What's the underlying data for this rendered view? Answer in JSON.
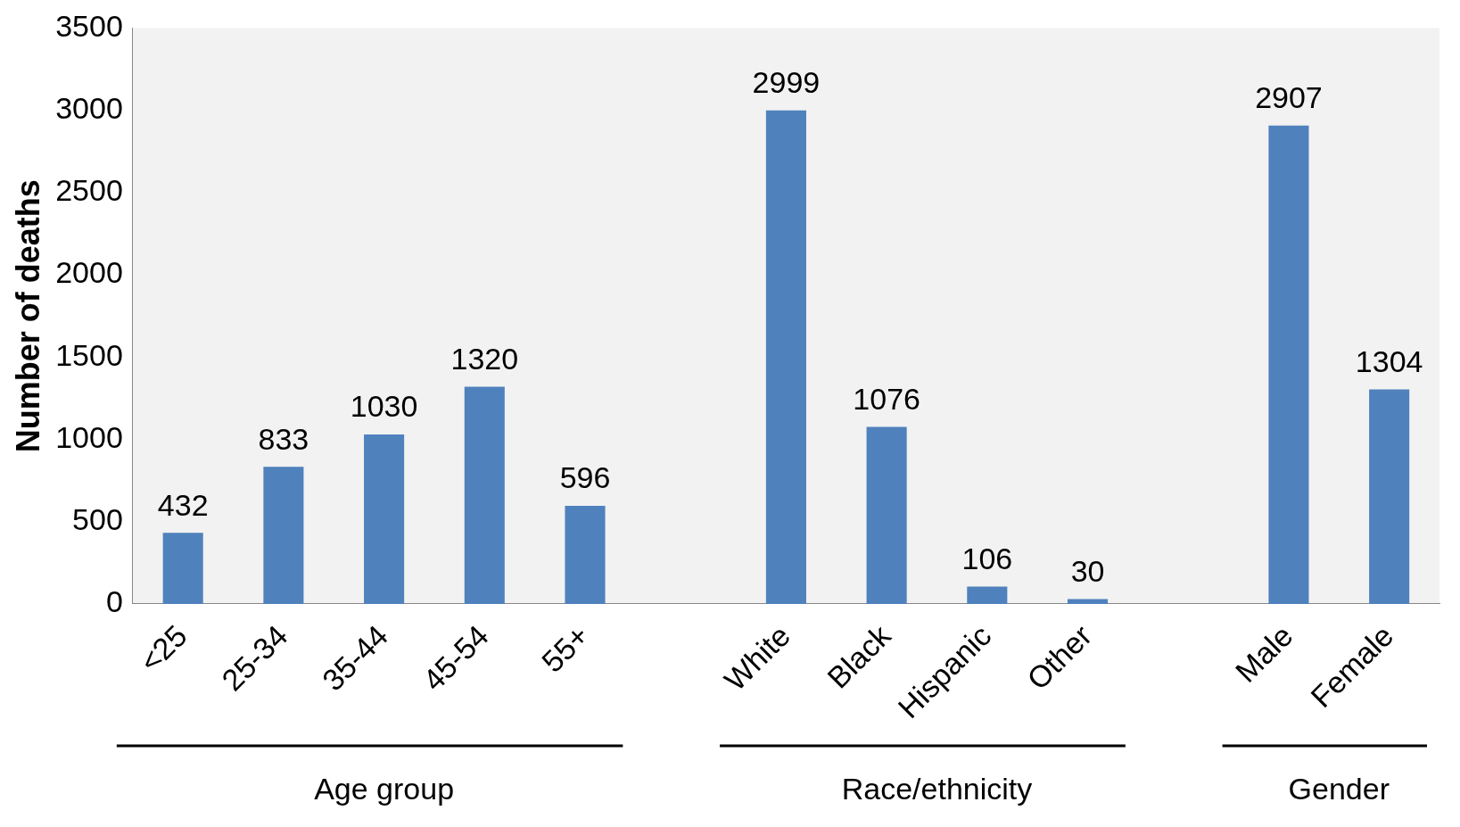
{
  "chart_data": {
    "type": "bar",
    "ylabel": "Number of deaths",
    "categories": [
      "<25",
      "25-34",
      "35-44",
      "45-54",
      "55+",
      null,
      "White",
      "Black",
      "Hispanic",
      "Other",
      null,
      "Male",
      "Female"
    ],
    "values": [
      432,
      833,
      1030,
      1320,
      596,
      null,
      2999,
      1076,
      106,
      30,
      null,
      2907,
      1304
    ],
    "color": "#4f81bd",
    "ylim": [
      0,
      3500
    ],
    "yticks": [
      0,
      500,
      1000,
      1500,
      2000,
      2500,
      3000,
      3500
    ],
    "grid": false,
    "legend": false,
    "data_labels": true,
    "annotations": [
      "Age group",
      "Race/ethnicity",
      "Gender"
    ]
  }
}
